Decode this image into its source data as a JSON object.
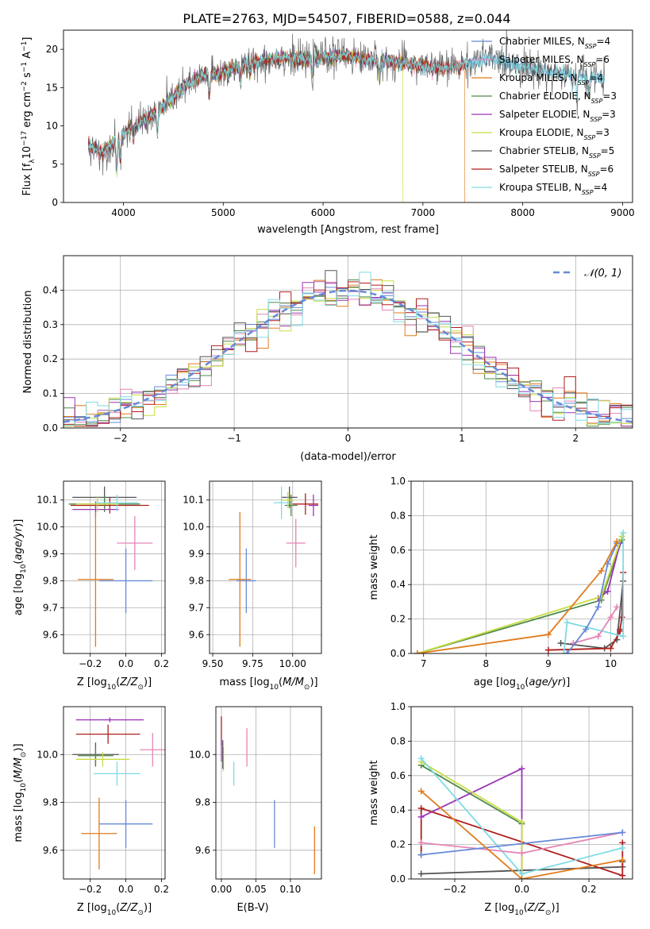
{
  "figure_title": "PLATE=2763, MJD=54507, FIBERID=0588, z=0.044",
  "chart_data": [
    {
      "id": "spectrum",
      "type": "line",
      "xlabel": "wavelength [Angstrom, rest frame]",
      "ylabel": "Flux [f_λ 10^-17 erg cm^-2 s^-1 A^-1]",
      "xlim": [
        3400,
        9100
      ],
      "ylim": [
        0,
        22.5
      ],
      "xticks": [
        4000,
        5000,
        6000,
        7000,
        8000,
        9000
      ],
      "yticks": [
        0,
        5,
        10,
        15,
        20
      ],
      "grid": false,
      "legend_placement": "top-right",
      "continuum": {
        "x": [
          3650,
          3800,
          3950,
          4100,
          4250,
          4400,
          4600,
          4800,
          5000,
          5200,
          5400,
          5600,
          5800,
          6000,
          6200,
          6400,
          6600,
          6800,
          7000,
          7200,
          7400,
          7600,
          7800,
          8000,
          8200,
          8400,
          8600,
          8800
        ],
        "y": [
          7.5,
          6.5,
          8.5,
          10.0,
          11.0,
          12.5,
          15.0,
          16.5,
          17.0,
          18.0,
          18.5,
          19.0,
          18.5,
          19.0,
          19.2,
          18.8,
          18.5,
          18.2,
          17.8,
          17.5,
          18.0,
          18.8,
          18.5,
          17.8,
          17.2,
          16.8,
          16.5,
          16.2
        ]
      },
      "series": [
        {
          "name": "Chabrier MILES",
          "nssp": "4",
          "color": "#6689d8",
          "xmax": 8820
        },
        {
          "name": "Salpeter MILES",
          "nssp": "6",
          "color": "#e585b6",
          "xmax": 7380
        },
        {
          "name": "Kroupa MILES",
          "nssp": "4",
          "color": "#e07b1d",
          "xmax": 7420,
          "drop_at": 7420
        },
        {
          "name": "Chabrier ELODIE",
          "nssp": "3",
          "color": "#4f8a4a",
          "xmax": 6800
        },
        {
          "name": "Salpeter ELODIE",
          "nssp": "3",
          "color": "#9b35b5",
          "xmax": 6800
        },
        {
          "name": "Kroupa ELODIE",
          "nssp": "3",
          "color": "#c7dd42",
          "xmax": 6800,
          "drop_at": 6800
        },
        {
          "name": "Chabrier STELIB",
          "nssp": "5",
          "color": "#555555",
          "xmax": 8820
        },
        {
          "name": "Salpeter STELIB",
          "nssp": "6",
          "color": "#b01e1e",
          "xmax": 7420
        },
        {
          "name": "Kroupa STELIB",
          "nssp": "4",
          "color": "#7fdbe3",
          "xmax": 8820
        }
      ]
    },
    {
      "id": "residuals",
      "type": "histogram",
      "xlabel": "(data-model)/error",
      "ylabel": "Normed distribution",
      "xlim": [
        -2.5,
        2.5
      ],
      "ylim": [
        0,
        0.5
      ],
      "xticks": [
        -2,
        -1,
        0,
        1,
        2
      ],
      "yticks": [
        0.0,
        0.1,
        0.2,
        0.3,
        0.4
      ],
      "bin_width": 0.1,
      "grid": true,
      "legend_placement": "top-right",
      "reference_curve": {
        "name": "𝒩(0, 1)",
        "color": "#6689d8",
        "dashed": true
      },
      "series_colors": [
        "#6689d8",
        "#e585b6",
        "#e07b1d",
        "#4f8a4a",
        "#9b35b5",
        "#c7dd42",
        "#555555",
        "#b01e1e",
        "#7fdbe3"
      ]
    },
    {
      "id": "age-vs-Z",
      "type": "errorbar",
      "xlabel": "Z [log10(Z/Z⊙)]",
      "ylabel": "age  [log10(age/yr)]",
      "xlim": [
        -0.35,
        0.22
      ],
      "ylim": [
        9.53,
        10.17
      ],
      "xticks": [
        -0.2,
        0.0,
        0.2
      ],
      "xticklabels": [
        "−0.2",
        "0.0",
        "0.2"
      ],
      "yticks": [
        9.6,
        9.7,
        9.8,
        9.9,
        10.0,
        10.1
      ],
      "grid": true,
      "points": [
        {
          "x": -0.12,
          "y": 10.11,
          "xerr": 0.18,
          "yerr": 0.04,
          "color": "#555555"
        },
        {
          "x": -0.09,
          "y": 10.08,
          "xerr": 0.22,
          "yerr": 0.03,
          "color": "#b01e1e"
        },
        {
          "x": -0.12,
          "y": 10.085,
          "xerr": 0.2,
          "yerr": 0.03,
          "color": "#4f8a4a"
        },
        {
          "x": -0.17,
          "y": 10.065,
          "xerr": 0.13,
          "yerr": 0.03,
          "color": "#9b35b5"
        },
        {
          "x": -0.16,
          "y": 10.085,
          "xerr": 0.12,
          "yerr": 0.03,
          "color": "#c7dd42"
        },
        {
          "x": -0.05,
          "y": 10.09,
          "xerr": 0.12,
          "yerr": 0.03,
          "color": "#7fdbe3"
        },
        {
          "x": 0.05,
          "y": 9.94,
          "xerr": 0.1,
          "yerr": 0.1,
          "color": "#e585b6"
        },
        {
          "x": 0.0,
          "y": 9.8,
          "xerr": 0.15,
          "yerr": 0.12,
          "color": "#6689d8"
        },
        {
          "x": -0.17,
          "y": 9.805,
          "xerr": 0.1,
          "yerr": 0.25,
          "color": "#e07b1d"
        }
      ]
    },
    {
      "id": "age-vs-mass",
      "type": "errorbar",
      "xlabel": "mass [log10(M/M⊙)]",
      "xlim": [
        9.48,
        10.18
      ],
      "ylim": [
        9.53,
        10.17
      ],
      "xticks": [
        9.5,
        9.75,
        10.0
      ],
      "xticklabels": [
        "9.50",
        "9.75",
        "10.00"
      ],
      "yticks": [
        9.6,
        9.7,
        9.8,
        9.9,
        10.0,
        10.1
      ],
      "grid": true,
      "points": [
        {
          "x": 9.98,
          "y": 10.11,
          "xerr": 0.05,
          "yerr": 0.04,
          "color": "#555555"
        },
        {
          "x": 10.08,
          "y": 10.085,
          "xerr": 0.08,
          "yerr": 0.04,
          "color": "#b01e1e"
        },
        {
          "x": 9.99,
          "y": 10.08,
          "xerr": 0.04,
          "yerr": 0.04,
          "color": "#4f8a4a"
        },
        {
          "x": 10.13,
          "y": 10.08,
          "xerr": 0.03,
          "yerr": 0.04,
          "color": "#9b35b5"
        },
        {
          "x": 9.97,
          "y": 10.1,
          "xerr": 0.04,
          "yerr": 0.03,
          "color": "#c7dd42"
        },
        {
          "x": 9.93,
          "y": 10.09,
          "xerr": 0.05,
          "yerr": 0.06,
          "color": "#7fdbe3"
        },
        {
          "x": 10.02,
          "y": 9.94,
          "xerr": 0.06,
          "yerr": 0.09,
          "color": "#e585b6"
        },
        {
          "x": 9.71,
          "y": 9.8,
          "xerr": 0.06,
          "yerr": 0.12,
          "color": "#6689d8"
        },
        {
          "x": 9.67,
          "y": 9.805,
          "xerr": 0.07,
          "yerr": 0.25,
          "color": "#e07b1d"
        }
      ]
    },
    {
      "id": "massweight-vs-age",
      "type": "line",
      "xlabel": "age  [log10(age/yr)]",
      "ylabel": "mass weight",
      "xlim": [
        6.8,
        10.35
      ],
      "ylim": [
        0,
        1.0
      ],
      "xticks": [
        7,
        8,
        9,
        10
      ],
      "yticks": [
        0.0,
        0.2,
        0.4,
        0.6,
        0.8,
        1.0
      ],
      "grid": true,
      "series": [
        {
          "color": "#555555",
          "x": [
            9.2,
            9.9,
            10.1,
            10.2
          ],
          "y": [
            0.06,
            0.03,
            0.08,
            0.42
          ]
        },
        {
          "color": "#b01e1e",
          "x": [
            9.0,
            10.0,
            10.15,
            10.15,
            10.18,
            10.2
          ],
          "y": [
            0.02,
            0.03,
            0.13,
            0.14,
            0.21,
            0.47
          ]
        },
        {
          "color": "#4f8a4a",
          "x": [
            6.9,
            9.85,
            10.18
          ],
          "y": [
            0.0,
            0.31,
            0.66
          ]
        },
        {
          "color": "#9b35b5",
          "x": [
            9.8,
            9.95,
            10.15
          ],
          "y": [
            0.32,
            0.36,
            0.64
          ]
        },
        {
          "color": "#c7dd42",
          "x": [
            6.9,
            9.85,
            10.18
          ],
          "y": [
            0.0,
            0.33,
            0.68
          ]
        },
        {
          "color": "#7fdbe3",
          "x": [
            9.25,
            9.3,
            10.2,
            10.2
          ],
          "y": [
            0.0,
            0.18,
            0.1,
            0.7
          ]
        },
        {
          "color": "#e585b6",
          "x": [
            9.4,
            9.8,
            10.0,
            10.1
          ],
          "y": [
            0.06,
            0.1,
            0.21,
            0.27
          ]
        },
        {
          "color": "#6689d8",
          "x": [
            9.3,
            9.6,
            9.8,
            9.95,
            10.1
          ],
          "y": [
            0.0,
            0.14,
            0.27,
            0.52,
            0.64
          ]
        },
        {
          "color": "#e07b1d",
          "x": [
            6.9,
            9.0,
            9.85,
            10.1
          ],
          "y": [
            0.0,
            0.11,
            0.48,
            0.65
          ]
        }
      ]
    },
    {
      "id": "mass-vs-Z",
      "type": "errorbar",
      "xlabel": "Z [log10(Z/Z⊙)]",
      "ylabel": "mass [log10(M/M⊙)]",
      "xlim": [
        -0.35,
        0.22
      ],
      "ylim": [
        9.48,
        10.2
      ],
      "xticks": [
        -0.2,
        0.0,
        0.2
      ],
      "xticklabels": [
        "−0.2",
        "0.0",
        "0.2"
      ],
      "yticks": [
        9.6,
        9.8,
        10.0
      ],
      "grid": true,
      "points": [
        {
          "x": -0.09,
          "y": 10.145,
          "xerr": 0.19,
          "yerr": 0.01,
          "color": "#9b35b5"
        },
        {
          "x": -0.1,
          "y": 10.085,
          "xerr": 0.18,
          "yerr": 0.04,
          "color": "#b01e1e"
        },
        {
          "x": -0.17,
          "y": 10.0,
          "xerr": 0.13,
          "yerr": 0.05,
          "color": "#555555"
        },
        {
          "x": -0.17,
          "y": 9.995,
          "xerr": 0.1,
          "yerr": 0.04,
          "color": "#4f8a4a"
        },
        {
          "x": -0.13,
          "y": 9.98,
          "xerr": 0.15,
          "yerr": 0.03,
          "color": "#c7dd42"
        },
        {
          "x": 0.15,
          "y": 10.02,
          "xerr": 0.07,
          "yerr": 0.07,
          "color": "#e585b6"
        },
        {
          "x": -0.05,
          "y": 9.92,
          "xerr": 0.13,
          "yerr": 0.05,
          "color": "#7fdbe3"
        },
        {
          "x": 0.0,
          "y": 9.71,
          "xerr": 0.15,
          "yerr": 0.1,
          "color": "#6689d8"
        },
        {
          "x": -0.15,
          "y": 9.67,
          "xerr": 0.1,
          "yerr": 0.15,
          "color": "#e07b1d"
        }
      ]
    },
    {
      "id": "mass-vs-EBV",
      "type": "errorbar",
      "xlabel": "E(B-V)",
      "xlim": [
        -0.008,
        0.145
      ],
      "ylim": [
        9.48,
        10.2
      ],
      "xticks": [
        0.0,
        0.05,
        0.1
      ],
      "xticklabels": [
        "0.00",
        "0.05",
        "0.10"
      ],
      "yticks": [
        9.6,
        9.8,
        10.0
      ],
      "grid": true,
      "points": [
        {
          "x": 0.0,
          "y": 10.1,
          "xerr": 0.0,
          "yerr": 0.06,
          "color": "#b01e1e"
        },
        {
          "x": 0.0,
          "y": 10.02,
          "xerr": 0.0,
          "yerr": 0.05,
          "color": "#9b35b5"
        },
        {
          "x": 0.003,
          "y": 9.98,
          "xerr": 0.0,
          "yerr": 0.05,
          "color": "#c7dd42"
        },
        {
          "x": 0.002,
          "y": 10.0,
          "xerr": 0.0,
          "yerr": 0.06,
          "color": "#555555"
        },
        {
          "x": 0.037,
          "y": 10.03,
          "xerr": 0.0,
          "yerr": 0.08,
          "color": "#e585b6"
        },
        {
          "x": 0.018,
          "y": 9.92,
          "xerr": 0.0,
          "yerr": 0.05,
          "color": "#7fdbe3"
        },
        {
          "x": 0.077,
          "y": 9.71,
          "xerr": 0.0,
          "yerr": 0.1,
          "color": "#6689d8"
        },
        {
          "x": 0.135,
          "y": 9.6,
          "xerr": 0.0,
          "yerr": 0.1,
          "color": "#e07b1d"
        }
      ]
    },
    {
      "id": "massweight-vs-Z",
      "type": "line",
      "xlabel": "Z [log10(Z/Z⊙)]",
      "ylabel": "mass weight",
      "xlim": [
        -0.33,
        0.33
      ],
      "ylim": [
        0,
        1.0
      ],
      "xticks": [
        -0.2,
        0.0,
        0.2
      ],
      "xticklabels": [
        "−0.2",
        "0.0",
        "0.2"
      ],
      "yticks": [
        0.0,
        0.2,
        0.4,
        0.6,
        0.8,
        1.0
      ],
      "grid": true,
      "series": [
        {
          "color": "#555555",
          "x": [
            -0.3,
            0.0,
            0.3,
            0.3
          ],
          "y": [
            0.03,
            0.05,
            0.07,
            0.1
          ]
        },
        {
          "color": "#b01e1e",
          "x": [
            -0.3,
            -0.3,
            0.3,
            0.3
          ],
          "y": [
            0.14,
            0.41,
            0.02,
            0.21
          ]
        },
        {
          "color": "#4f8a4a",
          "x": [
            -0.3,
            0.0,
            0.0
          ],
          "y": [
            0.66,
            0.32,
            0.0
          ]
        },
        {
          "color": "#9b35b5",
          "x": [
            -0.3,
            0.0,
            0.0
          ],
          "y": [
            0.36,
            0.64,
            0.0
          ]
        },
        {
          "color": "#c7dd42",
          "x": [
            -0.3,
            0.0,
            0.0
          ],
          "y": [
            0.68,
            0.33,
            0.0
          ]
        },
        {
          "color": "#7fdbe3",
          "x": [
            -0.3,
            0.0,
            0.3
          ],
          "y": [
            0.7,
            0.03,
            0.18
          ]
        },
        {
          "color": "#e585b6",
          "x": [
            -0.3,
            0.0,
            0.3
          ],
          "y": [
            0.21,
            0.15,
            0.27
          ]
        },
        {
          "color": "#6689d8",
          "x": [
            -0.3,
            0.3
          ],
          "y": [
            0.14,
            0.27
          ]
        },
        {
          "color": "#e07b1d",
          "x": [
            -0.3,
            0.0,
            0.3
          ],
          "y": [
            0.51,
            0.0,
            0.11
          ]
        }
      ]
    }
  ]
}
